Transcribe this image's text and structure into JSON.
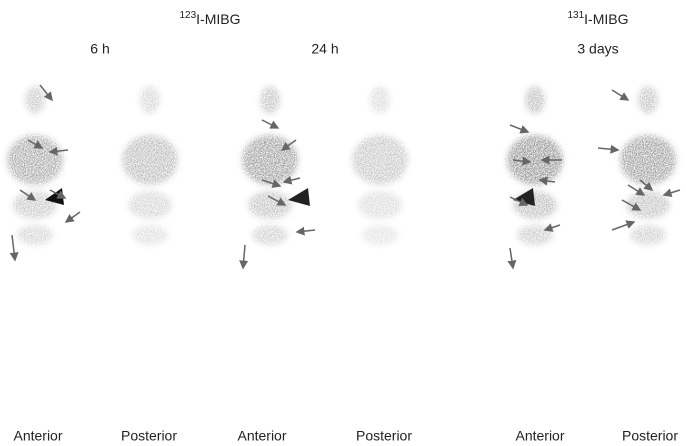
{
  "header": {
    "left_tracer": {
      "mass": "123",
      "name": "I-MIBG"
    },
    "right_tracer": {
      "mass": "131",
      "name": "I-MIBG"
    }
  },
  "panels": [
    {
      "time": "6 h",
      "views": [
        "Anterior",
        "Posterior"
      ]
    },
    {
      "time": "24 h",
      "views": [
        "Anterior",
        "Posterior"
      ]
    },
    {
      "time": "3 days",
      "views": [
        "Anterior",
        "Posterior"
      ]
    }
  ]
}
